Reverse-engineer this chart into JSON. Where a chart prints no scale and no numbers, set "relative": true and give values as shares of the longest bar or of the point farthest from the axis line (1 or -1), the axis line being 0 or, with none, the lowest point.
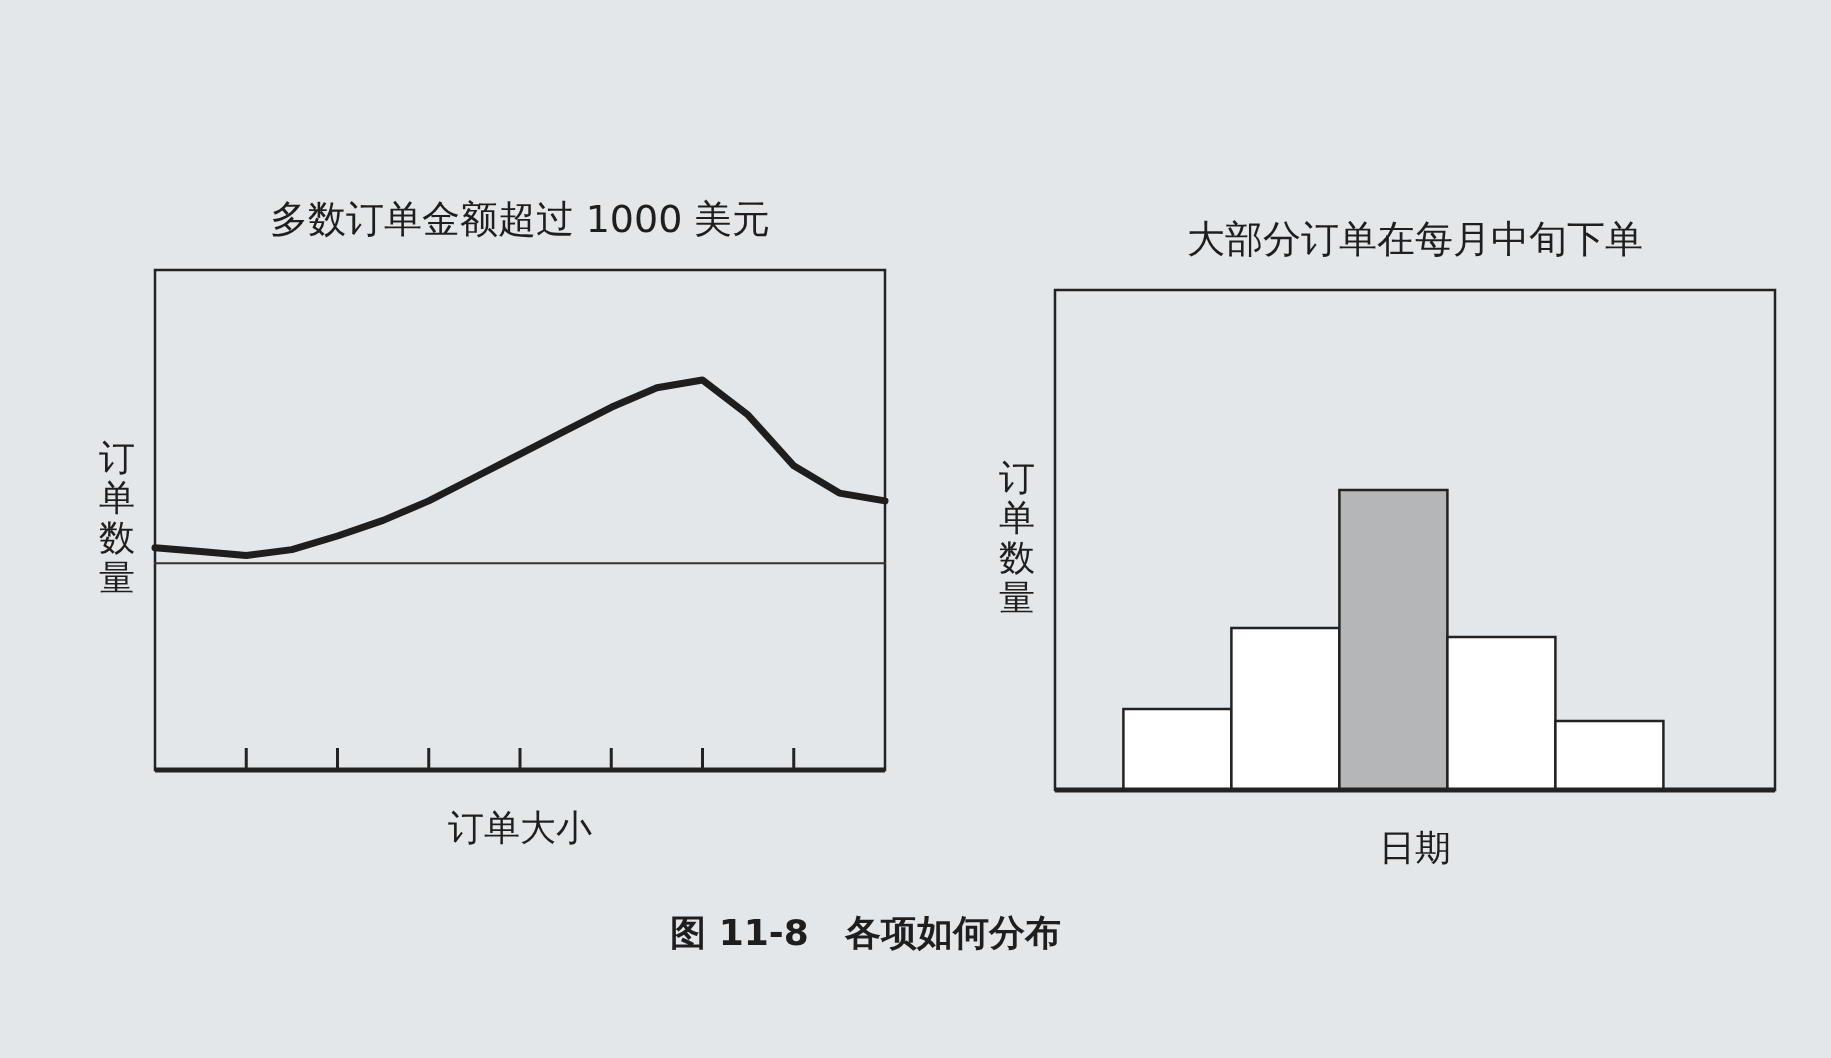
{
  "chart_data": [
    {
      "type": "line",
      "title": "多数订单金额超过 1000 美元",
      "xlabel": "订单大小",
      "ylabel": "订单数量",
      "relative": true,
      "categories": [
        null,
        null,
        null,
        null,
        null,
        null,
        null,
        null,
        null,
        null,
        null,
        null,
        null,
        null,
        null,
        null,
        null
      ],
      "series": [
        {
          "color": "#1e1e1e",
          "values": [
            0.57,
            0.56,
            0.55,
            0.565,
            0.6,
            0.64,
            0.69,
            0.75,
            0.81,
            0.87,
            0.93,
            0.98,
            1.0,
            0.91,
            0.78,
            0.71,
            0.69
          ]
        },
        {
          "color": "#333333",
          "values": [
            0.53,
            0.53,
            0.53,
            0.53,
            0.53,
            0.53,
            0.53,
            0.53,
            0.53,
            0.53,
            0.53,
            0.53,
            0.53,
            0.53,
            0.53,
            0.53,
            0.53
          ]
        }
      ],
      "annotations": [
        "图 11-8　各项如何分布"
      ]
    },
    {
      "type": "bar",
      "title": "大部分订单在每月中旬下单",
      "xlabel": "日期",
      "ylabel": "订单数量",
      "relative": true,
      "categories": [
        null,
        null,
        null,
        null,
        null
      ],
      "values": [
        0.27,
        0.54,
        1.0,
        0.51,
        0.23
      ],
      "colors": [
        "#ffffff",
        "#ffffff",
        "#b4b6b8",
        "#ffffff",
        "#ffffff"
      ]
    }
  ]
}
